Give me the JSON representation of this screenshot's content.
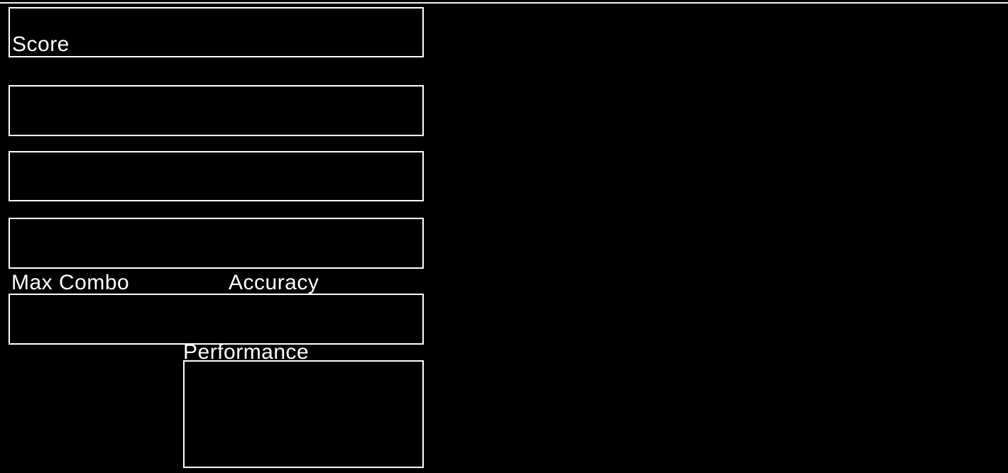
{
  "theme": {
    "background_color": "#000000",
    "box_border_color": "#ffffff",
    "text_color": "#ffffff",
    "top_line_color": "#f2f2f2"
  },
  "labels": {
    "score": "Score",
    "max_combo": "Max Combo",
    "accuracy": "Accuracy",
    "performance": "Performance"
  }
}
